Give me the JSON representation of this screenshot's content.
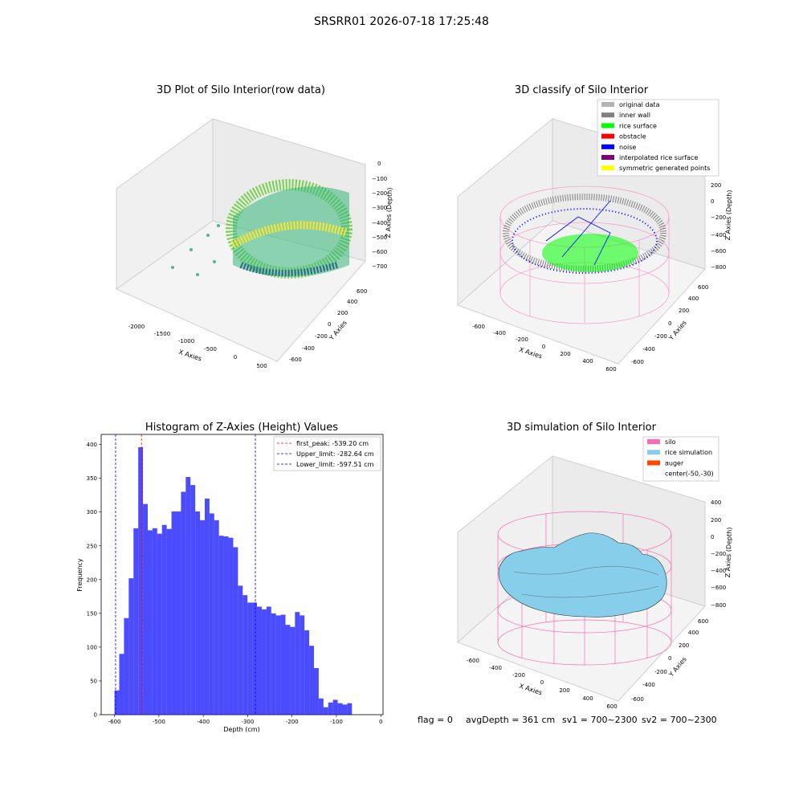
{
  "suptitle": "SRSRR01 2026-07-18 17:25:48",
  "panels": {
    "raw": {
      "title": "3D Plot of Silo Interior(row data)",
      "xlabel": "X Axies",
      "ylabel": "Y Axies",
      "zlabel": "Z Axies (Depth)",
      "xticks": [
        "-2000",
        "-1500",
        "-1000",
        "-500",
        "0",
        "500"
      ],
      "yticks": [
        "-600",
        "-400",
        "-200",
        "0",
        "200",
        "400",
        "600"
      ],
      "zticks": [
        "0",
        "−100",
        "−200",
        "−300",
        "−400",
        "−500",
        "−600",
        "−700"
      ]
    },
    "classify": {
      "title": "3D classify of Silo Interior",
      "xlabel": "X Axies",
      "ylabel": "Y Axies",
      "zlabel": "Z Axies (Depth)",
      "xticks": [
        "-600",
        "-400",
        "-200",
        "0",
        "200",
        "400",
        "600"
      ],
      "yticks": [
        "-600",
        "-400",
        "-200",
        "0",
        "200",
        "400",
        "600"
      ],
      "zticks": [
        "200",
        "0",
        "−200",
        "−400",
        "−600",
        "−800"
      ],
      "legend": [
        {
          "label": "original data",
          "color": "#b3b3b3"
        },
        {
          "label": "inner wall",
          "color": "#808080"
        },
        {
          "label": "rice surface",
          "color": "#00ff00"
        },
        {
          "label": "obstacle",
          "color": "#ff0000"
        },
        {
          "label": "noise",
          "color": "#0000ff"
        },
        {
          "label": "interpolated rice surface",
          "color": "#800080"
        },
        {
          "label": "symmetric generated points",
          "color": "#ffff00"
        }
      ]
    },
    "simulation": {
      "title": "3D simulation of Silo Interior",
      "xlabel": "X Axies",
      "ylabel": "Y Axies",
      "zlabel": "Z Axies (Depth)",
      "xticks": [
        "-600",
        "-400",
        "-200",
        "0",
        "200",
        "400",
        "600"
      ],
      "yticks": [
        "-600",
        "-400",
        "-200",
        "0",
        "200",
        "400",
        "600"
      ],
      "zticks": [
        "400",
        "200",
        "0",
        "−200",
        "−400",
        "−600",
        "−800"
      ],
      "legend": [
        {
          "label": "silo",
          "color": "#ff69b4"
        },
        {
          "label": "rice simulation",
          "color": "#87ceeb"
        },
        {
          "label": "auger",
          "color": "#ff4500"
        },
        {
          "label": "center(-50,-30)",
          "color": "none"
        }
      ]
    }
  },
  "status": {
    "flag": "flag = 0",
    "avg_depth": "avgDepth = 361 cm",
    "sv1": "sv1 = 700~2300",
    "sv2": "sv2 = 700~2300"
  },
  "chart_data": {
    "type": "bar",
    "title": "Histogram of Z-Axies (Height) Values",
    "xlabel": "Depth (cm)",
    "ylabel": "Frequency",
    "xlim": [
      -630,
      5
    ],
    "ylim": [
      0,
      415
    ],
    "xticks": [
      -600,
      -500,
      -400,
      -300,
      -200,
      -100,
      0
    ],
    "yticks": [
      0,
      50,
      100,
      150,
      200,
      250,
      300,
      350,
      400
    ],
    "bar_color": "#0000ff",
    "bin_start": -600,
    "bin_width": 10.7,
    "values": [
      36,
      90,
      143,
      202,
      276,
      396,
      312,
      273,
      276,
      268,
      281,
      275,
      301,
      301,
      330,
      352,
      340,
      301,
      288,
      320,
      298,
      288,
      265,
      264,
      262,
      248,
      191,
      177,
      166,
      166,
      160,
      156,
      160,
      150,
      147,
      148,
      133,
      130,
      152,
      147,
      125,
      102,
      69,
      24,
      11,
      18,
      22,
      17,
      15,
      17
    ],
    "lines": [
      {
        "label": "first_peak: -539.20 cm",
        "x": -539.2,
        "color": "#ff0000"
      },
      {
        "label": "Upper_limit: -282.64 cm",
        "x": -282.64,
        "color": "#0000ff"
      },
      {
        "label": "Lower_limit: -597.51 cm",
        "x": -597.51,
        "color": "#0000ff"
      }
    ],
    "legend_position": "top-right"
  }
}
